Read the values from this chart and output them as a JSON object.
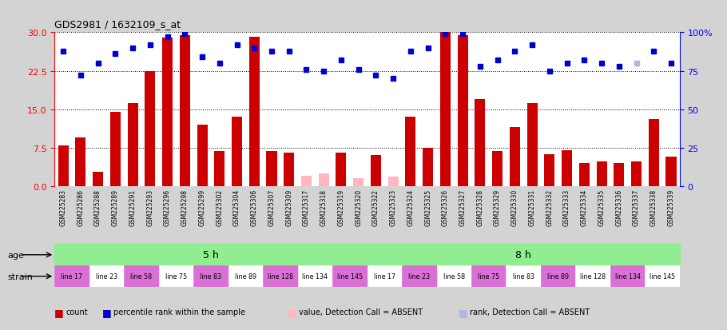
{
  "title": "GDS2981 / 1632109_s_at",
  "samples": [
    "GSM225283",
    "GSM225286",
    "GSM225288",
    "GSM225289",
    "GSM225291",
    "GSM225293",
    "GSM225296",
    "GSM225298",
    "GSM225299",
    "GSM225302",
    "GSM225304",
    "GSM225306",
    "GSM225307",
    "GSM225309",
    "GSM225317",
    "GSM225318",
    "GSM225319",
    "GSM225320",
    "GSM225322",
    "GSM225323",
    "GSM225324",
    "GSM225325",
    "GSM225326",
    "GSM225327",
    "GSM225328",
    "GSM225329",
    "GSM225330",
    "GSM225331",
    "GSM225332",
    "GSM225333",
    "GSM225334",
    "GSM225335",
    "GSM225336",
    "GSM225337",
    "GSM225338",
    "GSM225339"
  ],
  "bar_values": [
    8.0,
    9.5,
    2.8,
    14.5,
    16.2,
    22.5,
    29.0,
    29.5,
    12.0,
    6.8,
    13.5,
    29.2,
    6.8,
    6.5,
    2.0,
    2.5,
    6.5,
    1.5,
    6.0,
    1.8,
    13.5,
    7.5,
    30.0,
    29.5,
    17.0,
    6.8,
    11.5,
    16.2,
    6.2,
    7.0,
    4.5,
    4.8,
    4.5,
    4.8,
    13.0,
    5.8
  ],
  "bar_absent": [
    false,
    false,
    false,
    false,
    false,
    false,
    false,
    false,
    false,
    false,
    false,
    false,
    false,
    false,
    true,
    true,
    false,
    true,
    false,
    true,
    false,
    false,
    false,
    false,
    false,
    false,
    false,
    false,
    false,
    false,
    false,
    false,
    false,
    false,
    false,
    false
  ],
  "rank_values": [
    88,
    72,
    80,
    86,
    90,
    92,
    97,
    99,
    84,
    80,
    92,
    90,
    88,
    88,
    76,
    75,
    82,
    76,
    72,
    70,
    88,
    90,
    99,
    99,
    78,
    82,
    88,
    92,
    75,
    80,
    82,
    80,
    78,
    80,
    88,
    80
  ],
  "rank_absent": [
    false,
    false,
    false,
    false,
    false,
    false,
    false,
    false,
    false,
    false,
    false,
    false,
    false,
    false,
    false,
    false,
    false,
    false,
    false,
    false,
    false,
    false,
    false,
    false,
    false,
    false,
    false,
    false,
    false,
    false,
    false,
    false,
    false,
    true,
    false,
    false
  ],
  "strain_groups": [
    {
      "label": "line 17",
      "start": 0,
      "end": 2,
      "color": "#da70d6"
    },
    {
      "label": "line 23",
      "start": 2,
      "end": 4,
      "color": "#ffffff"
    },
    {
      "label": "line 58",
      "start": 4,
      "end": 6,
      "color": "#da70d6"
    },
    {
      "label": "line 75",
      "start": 6,
      "end": 8,
      "color": "#ffffff"
    },
    {
      "label": "line 83",
      "start": 8,
      "end": 10,
      "color": "#da70d6"
    },
    {
      "label": "line 89",
      "start": 10,
      "end": 12,
      "color": "#ffffff"
    },
    {
      "label": "line 128",
      "start": 12,
      "end": 14,
      "color": "#da70d6"
    },
    {
      "label": "line 134",
      "start": 14,
      "end": 16,
      "color": "#ffffff"
    },
    {
      "label": "line 145",
      "start": 16,
      "end": 18,
      "color": "#da70d6"
    },
    {
      "label": "line 17",
      "start": 18,
      "end": 20,
      "color": "#ffffff"
    },
    {
      "label": "line 23",
      "start": 20,
      "end": 22,
      "color": "#da70d6"
    },
    {
      "label": "line 58",
      "start": 22,
      "end": 24,
      "color": "#ffffff"
    },
    {
      "label": "line 75",
      "start": 24,
      "end": 26,
      "color": "#da70d6"
    },
    {
      "label": "line 83",
      "start": 26,
      "end": 28,
      "color": "#ffffff"
    },
    {
      "label": "line 89",
      "start": 28,
      "end": 30,
      "color": "#da70d6"
    },
    {
      "label": "line 128",
      "start": 30,
      "end": 32,
      "color": "#ffffff"
    },
    {
      "label": "line 134",
      "start": 32,
      "end": 34,
      "color": "#da70d6"
    },
    {
      "label": "line 145",
      "start": 34,
      "end": 36,
      "color": "#ffffff"
    }
  ],
  "bar_color_present": "#cc0000",
  "bar_color_absent": "#ffb6c1",
  "rank_color_present": "#0000cc",
  "rank_color_absent": "#b0b8e0",
  "ylim_left": [
    0,
    30
  ],
  "ylim_right": [
    0,
    100
  ],
  "yticks_left": [
    0,
    7.5,
    15,
    22.5,
    30
  ],
  "yticks_right": [
    0,
    25,
    50,
    75,
    100
  ],
  "ytick_labels_right": [
    "0",
    "25",
    "50",
    "75",
    "100%"
  ],
  "background_color": "#d3d3d3",
  "plot_bg_color": "#ffffff",
  "legend_items": [
    {
      "label": "count",
      "color": "#cc0000"
    },
    {
      "label": "percentile rank within the sample",
      "color": "#0000cc"
    },
    {
      "label": "value, Detection Call = ABSENT",
      "color": "#ffb6c1"
    },
    {
      "label": "rank, Detection Call = ABSENT",
      "color": "#b0b8e0"
    }
  ]
}
